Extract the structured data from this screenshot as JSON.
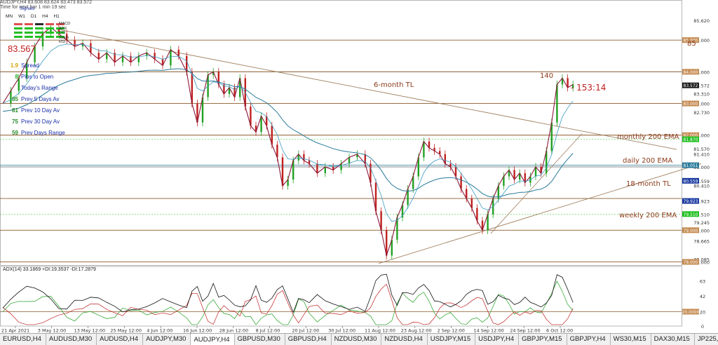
{
  "window": {
    "symbol_line": "AUDJPY,H4 83.608 83.624 83.473 83.572",
    "time_line": "Time for next bar 1 min 19 sec"
  },
  "signals": {
    "title": "Signals",
    "timeframes": [
      "MN",
      "W1",
      "D1",
      "H4",
      "H1"
    ],
    "indicators": [
      "MACD",
      "ADX",
      "CCI",
      "Stoch",
      "RSI"
    ],
    "colors": {
      "red": "#e05050",
      "green": "#22c022",
      "dark": "#2a2a2a"
    }
  },
  "stats": {
    "price": "83.567",
    "rows": [
      {
        "value": "1.9",
        "label": "Spread",
        "color": "#d0a000"
      },
      {
        "value": "8",
        "label": "Pips to Open",
        "color": "#22b022"
      },
      {
        "value": "",
        "label": "Today's Range",
        "color": "#22b022"
      },
      {
        "value": "85",
        "label": "Prev 5 Days Av",
        "color": "#2a8a2a"
      },
      {
        "value": "81",
        "label": "Prev 10 Day Av",
        "color": "#2a8a2a"
      },
      {
        "value": "75",
        "label": "Prev 30 Day Av",
        "color": "#2a8a2a"
      },
      {
        "value": "59",
        "label": "Prev Days Range",
        "color": "#2a8a2a"
      }
    ]
  },
  "annotations": {
    "six_month_tl": "6-month TL",
    "monthly_ema": "monthly 200 EMA",
    "daily_ema": "daily 200 EMA",
    "eighteen_month_tl": "18-month TL",
    "weekly_ema": "weekly 200 EMA",
    "count_140": "140",
    "ratio": "- 153:14",
    "level_85": "85"
  },
  "colors": {
    "bull": "#22a022",
    "bear": "#c02020",
    "level_line": "#8b5a2b",
    "ema_blue": "#2a7a9a",
    "ma_red": "#8a1a3a",
    "trendline": "#a08060",
    "adx_black": "#111111",
    "di_plus": "#22a022",
    "di_minus": "#c02020",
    "label_brown": "#8b3a1a"
  },
  "chart_data": {
    "type": "line",
    "title": "",
    "y_tick_labels": [
      "85.620",
      "85.000",
      "84.000",
      "83.572",
      "83.310",
      "83.000",
      "82.730",
      "82.000",
      "81.570",
      "81.410",
      "81.000",
      "80.559",
      "80.410",
      "79.923",
      "79.510",
      "79.245",
      "79.000",
      "78.665",
      "78.085",
      "78.000"
    ],
    "ylim": [
      77.9,
      86.0
    ],
    "horizontal_levels": [
      85.0,
      84.0,
      83.0,
      82.0,
      81.0,
      80.0,
      79.0,
      78.0
    ],
    "price_tags": [
      {
        "label": "85.000",
        "value": 85.0,
        "bg": "#c48a50"
      },
      {
        "label": "84.000",
        "value": 84.0,
        "bg": "#c48a50"
      },
      {
        "label": "83.572",
        "value": 83.572,
        "bg": "#1a1a1a"
      },
      {
        "label": "83.000",
        "value": 83.0,
        "bg": "#c48a50"
      },
      {
        "label": "82.000",
        "value": 82.0,
        "bg": "#c48a50"
      },
      {
        "label": "81.870",
        "value": 81.87,
        "bg": "#22c022"
      },
      {
        "label": "81.051",
        "value": 81.051,
        "bg": "#2a7a9a"
      },
      {
        "label": "80.559",
        "value": 80.559,
        "bg": "#1a3aa0"
      },
      {
        "label": "79.923",
        "value": 79.923,
        "bg": "#1a3aa0"
      },
      {
        "label": "79.510",
        "value": 79.51,
        "bg": "#22c022"
      },
      {
        "label": "79.000",
        "value": 79.0,
        "bg": "#c48a50"
      },
      {
        "label": "78.000",
        "value": 78.0,
        "bg": "#c48a50"
      }
    ],
    "x_labels": [
      "21 Apr 2021",
      "3 May 12:00",
      "13 May 12:00",
      "25 May 12:00",
      "4 Jun 12:00",
      "16 Jun 12:00",
      "28 Jun 12:00",
      "8 Jul 12:00",
      "20 Jul 12:00",
      "30 Jul 12:00",
      "11 Aug 12:00",
      "23 Aug 12:00",
      "2 Sep 12:00",
      "14 Sep 12:00",
      "24 Sep 12:00",
      "6 Oct 12:00"
    ],
    "price_series": [
      [
        0,
        83.0
      ],
      [
        6,
        83.4
      ],
      [
        12,
        83.8
      ],
      [
        18,
        84.3
      ],
      [
        24,
        84.8
      ],
      [
        30,
        85.2
      ],
      [
        36,
        85.4
      ],
      [
        42,
        85.2
      ],
      [
        48,
        85.0
      ],
      [
        54,
        84.8
      ],
      [
        60,
        84.9
      ],
      [
        66,
        84.6
      ],
      [
        72,
        84.4
      ],
      [
        78,
        84.6
      ],
      [
        84,
        84.3
      ],
      [
        90,
        84.5
      ],
      [
        96,
        84.3
      ],
      [
        102,
        84.5
      ],
      [
        108,
        84.6
      ],
      [
        114,
        84.4
      ],
      [
        120,
        84.2
      ],
      [
        126,
        84.7
      ],
      [
        132,
        84.5
      ],
      [
        138,
        84.0
      ],
      [
        142,
        83.0
      ],
      [
        146,
        82.4
      ],
      [
        150,
        83.2
      ],
      [
        154,
        83.9
      ],
      [
        158,
        84.0
      ],
      [
        162,
        83.6
      ],
      [
        166,
        83.3
      ],
      [
        170,
        83.5
      ],
      [
        174,
        83.2
      ],
      [
        178,
        83.8
      ],
      [
        182,
        82.9
      ],
      [
        186,
        82.3
      ],
      [
        190,
        82.1
      ],
      [
        194,
        82.6
      ],
      [
        198,
        82.3
      ],
      [
        202,
        81.7
      ],
      [
        206,
        81.3
      ],
      [
        210,
        80.4
      ],
      [
        214,
        80.6
      ],
      [
        218,
        81.2
      ],
      [
        222,
        81.4
      ],
      [
        226,
        81.2
      ],
      [
        230,
        81.1
      ],
      [
        236,
        80.8
      ],
      [
        242,
        81.0
      ],
      [
        248,
        80.9
      ],
      [
        254,
        81.1
      ],
      [
        260,
        81.3
      ],
      [
        266,
        81.4
      ],
      [
        272,
        81.1
      ],
      [
        276,
        80.5
      ],
      [
        280,
        79.6
      ],
      [
        284,
        79.0
      ],
      [
        288,
        78.2
      ],
      [
        292,
        78.7
      ],
      [
        296,
        79.4
      ],
      [
        300,
        79.8
      ],
      [
        304,
        80.3
      ],
      [
        308,
        80.7
      ],
      [
        312,
        81.3
      ],
      [
        316,
        81.8
      ],
      [
        320,
        81.6
      ],
      [
        324,
        81.5
      ],
      [
        328,
        81.4
      ],
      [
        332,
        81.1
      ],
      [
        336,
        81.0
      ],
      [
        340,
        80.7
      ],
      [
        344,
        80.3
      ],
      [
        348,
        80.0
      ],
      [
        352,
        79.7
      ],
      [
        356,
        79.3
      ],
      [
        360,
        79.0
      ],
      [
        364,
        79.5
      ],
      [
        368,
        80.0
      ],
      [
        372,
        80.4
      ],
      [
        376,
        80.7
      ],
      [
        380,
        80.9
      ],
      [
        384,
        80.6
      ],
      [
        388,
        80.8
      ],
      [
        392,
        80.5
      ],
      [
        396,
        80.7
      ],
      [
        400,
        81.0
      ],
      [
        404,
        80.8
      ],
      [
        408,
        81.5
      ],
      [
        412,
        82.4
      ],
      [
        416,
        83.6
      ],
      [
        420,
        83.8
      ],
      [
        424,
        83.5
      ],
      [
        428,
        83.6
      ]
    ],
    "indicator_series": {
      "adx_label": "ADX(14) 33.1869 +DI:19.3537 -DI:17.2879",
      "adx_ticks": [
        "63",
        "42",
        "20",
        "0"
      ],
      "adx_levels": [
        20
      ],
      "adx_level_tag": {
        "label": "20.0000",
        "value": 20
      }
    }
  }
}
